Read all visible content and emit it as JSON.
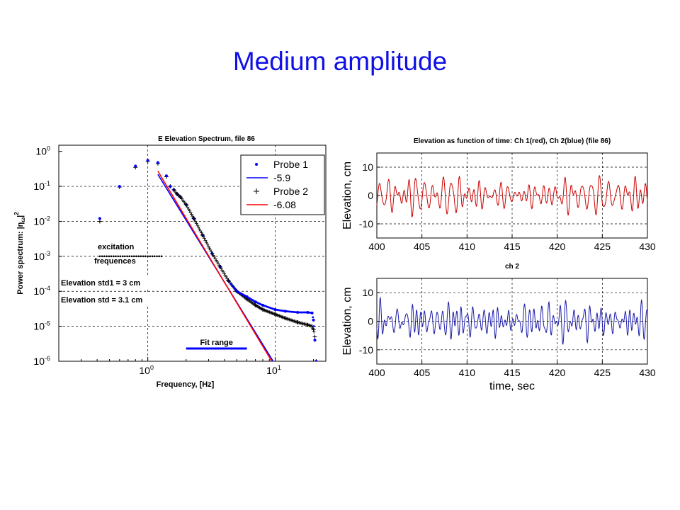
{
  "slide": {
    "title": "Medium amplitude"
  },
  "chart_data": [
    {
      "type": "scatter",
      "title": "E Elevation Spectrum,  file 86",
      "xlabel": "Frequency, [Hz]",
      "ylabel": "Power spectrum: |η",
      "ylabel_sub": "ω",
      "ylabel_sup": "2",
      "xscale": "log",
      "yscale": "log",
      "xlim": [
        0.2,
        25
      ],
      "ylim": [
        1e-06,
        1.5
      ],
      "grid": true,
      "legend_position": "top-right",
      "x_tick_labels": [
        "10",
        "10"
      ],
      "x_tick_exps": [
        "0",
        "1"
      ],
      "y_tick_labels": [
        "10",
        "10",
        "10",
        "10",
        "10",
        "10",
        "10"
      ],
      "y_tick_exps": [
        "0",
        "-1",
        "-2",
        "-3",
        "-4",
        "-5",
        "-6"
      ],
      "legend": [
        {
          "label": "Probe 1",
          "marker": "dot",
          "color": "#0000ff"
        },
        {
          "label": "-5.9",
          "marker": "line",
          "color": "#0000ff"
        },
        {
          "label": "Probe 2",
          "marker": "plus",
          "color": "#000000"
        },
        {
          "label": "-6.08",
          "marker": "line",
          "color": "#ff0000"
        }
      ],
      "annotations": {
        "excitation_line1": "excitation",
        "excitation_line2": "frequences",
        "std1": "Elevation std1 = 3 cm",
        "std2": "Elevation std = 3.1 cm",
        "fit_range": "Fit range"
      },
      "excitation_dots": {
        "x_range": [
          0.42,
          1.28
        ],
        "y": 0.001
      },
      "fit_range": [
        2.0,
        6.0
      ],
      "fit_lines": [
        {
          "name": "-5.9",
          "slope": -5.9,
          "through": [
            4,
            0.00018
          ],
          "color": "#0000ff"
        },
        {
          "name": "-6.08",
          "slope": -6.08,
          "through": [
            4,
            0.00018
          ],
          "color": "#ff0000"
        }
      ],
      "series": [
        {
          "name": "Probe 1",
          "color": "#0000ff",
          "x": [
            0.42,
            0.6,
            0.8,
            1.0,
            1.2,
            1.4,
            1.5,
            1.6,
            1.7,
            1.8,
            2.0,
            2.3,
            2.7,
            3.2,
            3.7,
            4.3,
            5.0,
            6.0,
            7.0,
            8.0,
            10.0,
            12.0,
            15.0,
            18.0,
            19.5,
            20.0,
            20.5,
            21.0
          ],
          "y": [
            0.012,
            0.1,
            0.38,
            0.55,
            0.48,
            0.2,
            0.1,
            0.08,
            0.06,
            0.05,
            0.03,
            0.012,
            0.004,
            0.0012,
            0.0005,
            0.0002,
            0.0001,
            7e-05,
            5e-05,
            4e-05,
            3e-05,
            2.7e-05,
            2.5e-05,
            2.5e-05,
            2.4e-05,
            1.5e-05,
            4e-06,
            1e-06
          ]
        },
        {
          "name": "Probe 2",
          "color": "#000000",
          "x": [
            0.42,
            0.6,
            0.8,
            1.0,
            1.2,
            1.4,
            1.5,
            1.6,
            1.7,
            1.8,
            2.0,
            2.3,
            2.7,
            3.2,
            3.7,
            4.3,
            5.0,
            6.0,
            7.0,
            8.0,
            10.0,
            12.0,
            15.0,
            18.0,
            19.5,
            20.0,
            20.5,
            21.0
          ],
          "y": [
            0.01,
            0.095,
            0.35,
            0.52,
            0.45,
            0.19,
            0.1,
            0.08,
            0.06,
            0.05,
            0.03,
            0.012,
            0.004,
            0.0012,
            0.0005,
            0.0002,
            0.0001,
            6e-05,
            4e-05,
            3e-05,
            2.2e-05,
            1.7e-05,
            1.3e-05,
            1.1e-05,
            1e-05,
            8e-06,
            5e-06,
            1e-06
          ]
        }
      ]
    },
    {
      "type": "line",
      "title": "Elevation as function of time: Ch 1(red), Ch 2(blue) (file 86)",
      "xlabel": "",
      "ylabel": "Elevation, cm",
      "xlim": [
        400,
        430
      ],
      "ylim": [
        -15,
        15
      ],
      "x_ticks": [
        400,
        405,
        410,
        415,
        420,
        425,
        430
      ],
      "y_ticks": [
        10,
        0,
        -10
      ],
      "grid": true,
      "series": [
        {
          "name": "Ch 1",
          "color": "#cc0000",
          "seed": 7
        }
      ]
    },
    {
      "type": "line",
      "title": "ch 2",
      "xlabel": "time, sec",
      "ylabel": "Elevation, cm",
      "xlim": [
        400,
        430
      ],
      "ylim": [
        -15,
        15
      ],
      "x_ticks": [
        400,
        405,
        410,
        415,
        420,
        425,
        430
      ],
      "y_ticks": [
        10,
        0,
        -10
      ],
      "grid": true,
      "series": [
        {
          "name": "Ch 2",
          "color": "#1a1aa8",
          "seed": 23
        }
      ]
    }
  ]
}
